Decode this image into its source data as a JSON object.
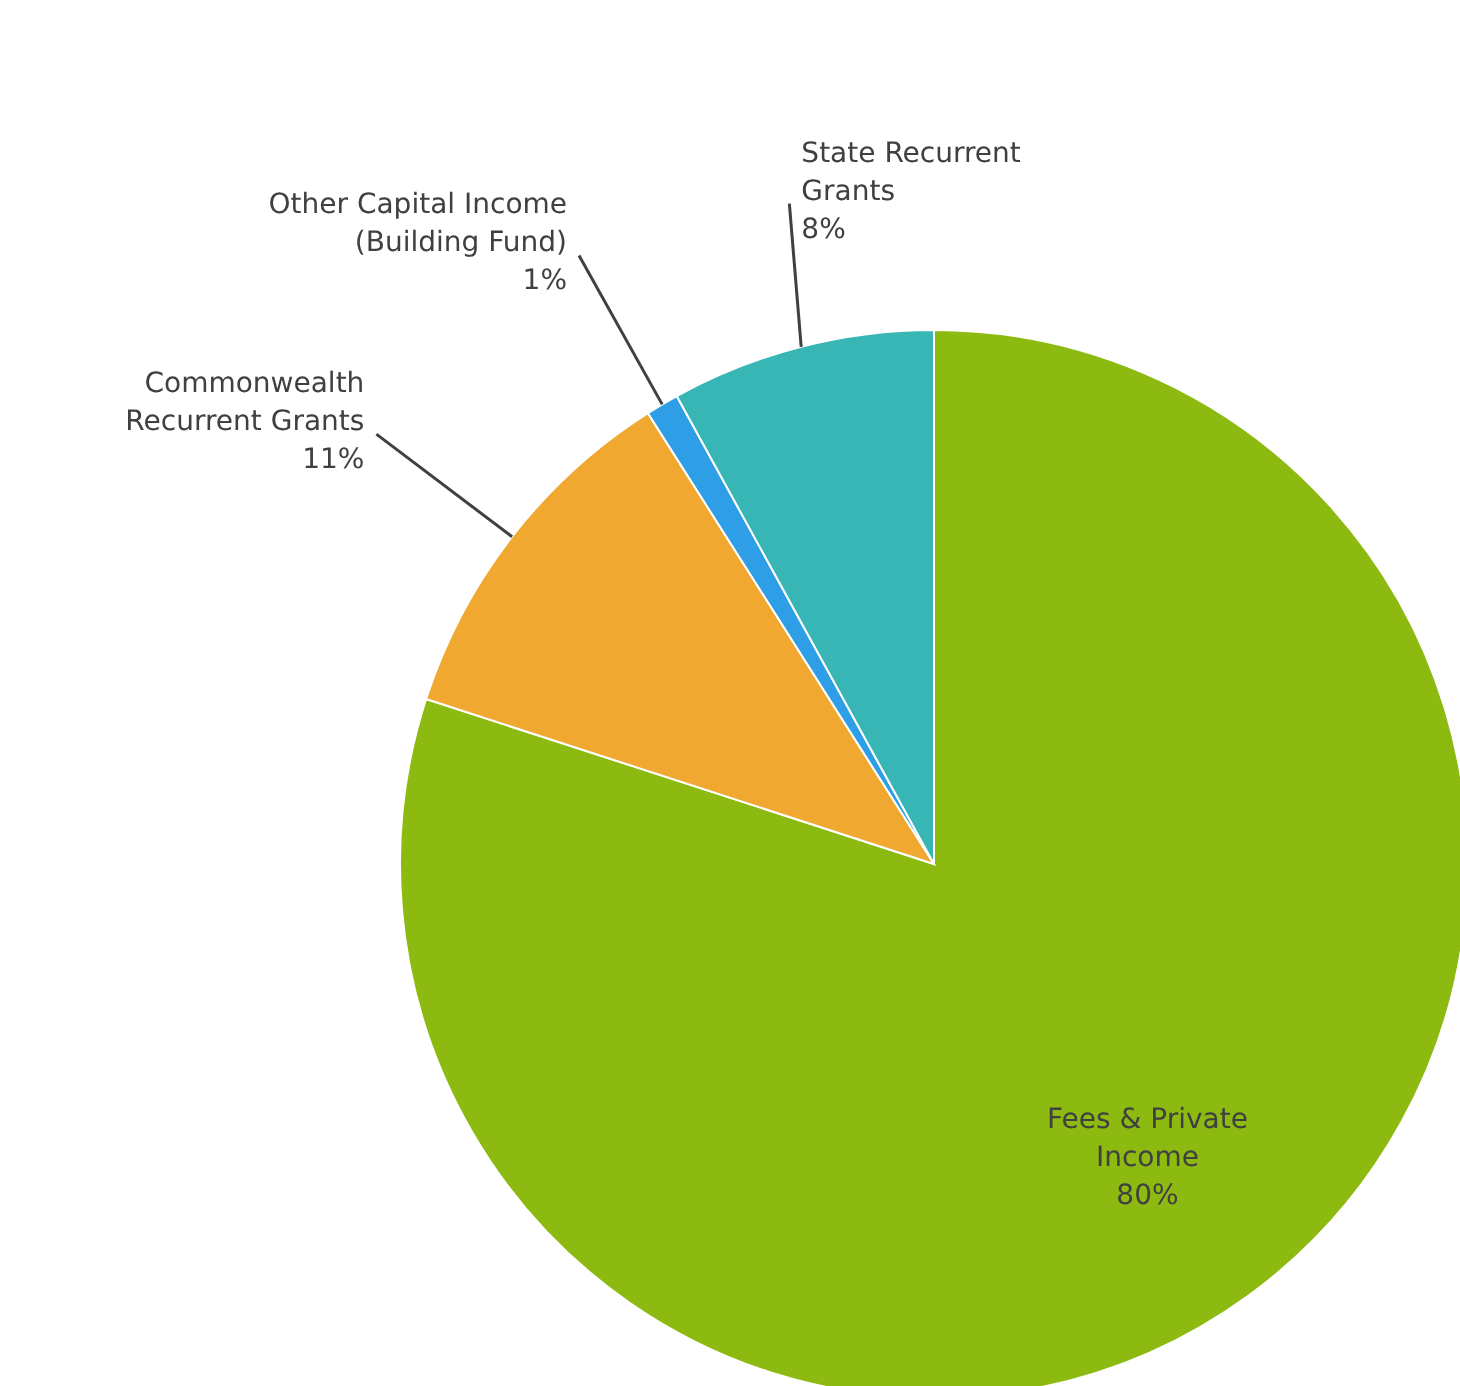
{
  "chart_data": {
    "type": "pie",
    "categories": [
      "Fees & Private\nIncome",
      "Commonwealth\nRecurrent Grants",
      "Other Capital Income\n(Building Fund)",
      "State Recurrent\nGrants"
    ],
    "values": [
      80,
      11,
      1,
      8
    ],
    "value_labels": [
      "80%",
      "11%",
      "1%",
      "8%"
    ],
    "colors": [
      "#8dba10",
      "#f0a830",
      "#2e9fe6",
      "#38b5b5"
    ]
  }
}
